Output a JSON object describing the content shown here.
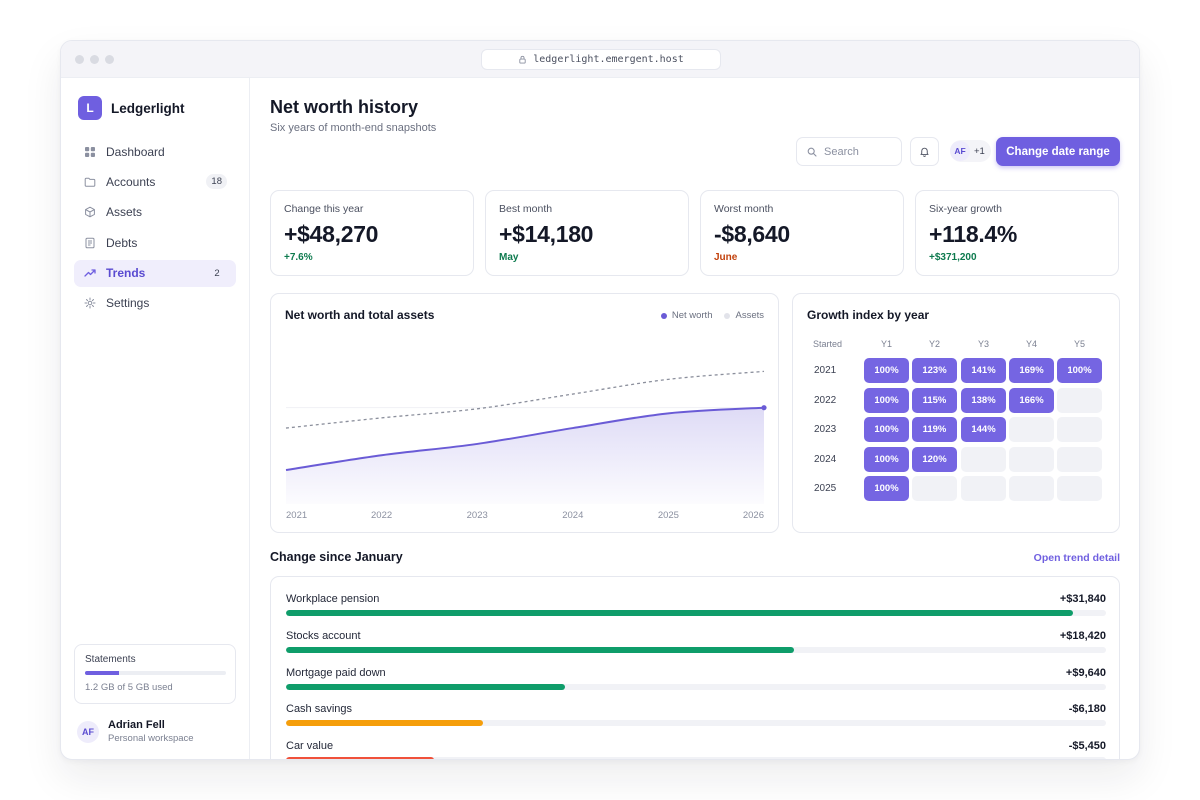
{
  "browser": {
    "url": "ledgerlight.emergent.host"
  },
  "brand": {
    "initial": "L",
    "name": "Ledgerlight"
  },
  "sidebar": {
    "items": [
      {
        "label": "Dashboard",
        "icon": "grid-icon",
        "badge": ""
      },
      {
        "label": "Accounts",
        "icon": "folder-icon",
        "badge": "18"
      },
      {
        "label": "Assets",
        "icon": "cube-icon",
        "badge": ""
      },
      {
        "label": "Debts",
        "icon": "document-icon",
        "badge": ""
      },
      {
        "label": "Trends",
        "icon": "trend-icon",
        "badge": "2",
        "active": true
      },
      {
        "label": "Settings",
        "icon": "gear-icon",
        "badge": ""
      }
    ],
    "storage": {
      "title": "Statements",
      "used_fraction": 0.24,
      "text": "1.2 GB of 5 GB used"
    },
    "user": {
      "initials": "AF",
      "name": "Adrian Fell",
      "subtitle": "Personal workspace"
    }
  },
  "header": {
    "title": "Net worth history",
    "subtitle": "Six years of month-end snapshots",
    "search_placeholder": "Search",
    "collaborator_initials": "AF",
    "collaborator_more": "+1",
    "cta_label": "Change date range"
  },
  "kpis": [
    {
      "label": "Change this year",
      "value": "+$48,270",
      "delta": "+7.6%",
      "delta_color": "#0d7a4e"
    },
    {
      "label": "Best month",
      "value": "+$14,180",
      "delta": "May",
      "delta_color": "#0d7a4e"
    },
    {
      "label": "Worst month",
      "value": "-$8,640",
      "delta": "June",
      "delta_color": "#c2410c"
    },
    {
      "label": "Six-year growth",
      "value": "+118.4%",
      "delta": "+$371,200",
      "delta_color": "#0d7a4e"
    }
  ],
  "chart_data": [
    {
      "type": "area",
      "title": "Net worth and total assets",
      "x": [
        2021,
        2022,
        2023,
        2024,
        2025,
        2026
      ],
      "x_tick_labels": [
        "2021",
        "2022",
        "2023",
        "2024",
        "2025",
        "2026"
      ],
      "series": [
        {
          "name": "Net worth",
          "values": [
            30,
            43,
            53,
            67,
            80,
            85
          ],
          "color": "#6a5bd6",
          "style": "solid-area"
        },
        {
          "name": "Assets",
          "values": [
            67,
            76,
            84,
            97,
            110,
            117
          ],
          "color": "#8b8f9c",
          "style": "dashed"
        }
      ],
      "ylim": [
        0,
        150
      ],
      "grid": false,
      "legend_position": "top-right"
    },
    {
      "type": "heatmap",
      "title": "Growth index by year",
      "corner_label": "Started",
      "columns": [
        "Y1",
        "Y2",
        "Y3",
        "Y4",
        "Y5"
      ],
      "rows": [
        {
          "label": "2021",
          "values": [
            "100%",
            "123%",
            "141%",
            "169%",
            "100%"
          ]
        },
        {
          "label": "2022",
          "values": [
            "100%",
            "115%",
            "138%",
            "166%",
            ""
          ]
        },
        {
          "label": "2023",
          "values": [
            "100%",
            "119%",
            "144%",
            "",
            ""
          ]
        },
        {
          "label": "2024",
          "values": [
            "100%",
            "120%",
            "",
            "",
            ""
          ]
        },
        {
          "label": "2025",
          "values": [
            "100%",
            "",
            "",
            "",
            ""
          ]
        }
      ],
      "cell_color": "#7565e2"
    }
  ],
  "changes": {
    "title": "Change since January",
    "link": "Open trend detail",
    "items": [
      {
        "label": "Workplace pension",
        "value": "+$31,840",
        "fraction": 0.96,
        "color": "#0f9d6a"
      },
      {
        "label": "Stocks account",
        "value": "+$18,420",
        "fraction": 0.62,
        "color": "#0f9d6a"
      },
      {
        "label": "Mortgage paid down",
        "value": "+$9,640",
        "fraction": 0.34,
        "color": "#0f9d6a"
      },
      {
        "label": "Cash savings",
        "value": "-$6,180",
        "fraction": 0.24,
        "color": "#f59e0b"
      },
      {
        "label": "Car value",
        "value": "-$5,450",
        "fraction": 0.18,
        "color": "#f0513a"
      }
    ]
  }
}
